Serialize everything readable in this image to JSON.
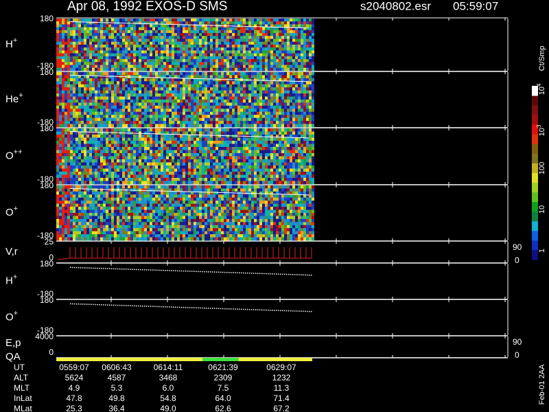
{
  "header": {
    "title": "Apr 08, 1992    EXOS-D SMS",
    "file": "s2040802.esr",
    "time": "05:59:07"
  },
  "panels": [
    {
      "label": "H",
      "sup": "+",
      "top": "180",
      "bottom": "-180"
    },
    {
      "label": "He",
      "sup": "+",
      "top": "180",
      "bottom": "-180"
    },
    {
      "label": "O",
      "sup": "++",
      "top": "180",
      "bottom": "-180"
    },
    {
      "label": "O",
      "sup": "+",
      "top": "180",
      "bottom": "-180"
    },
    {
      "label": "V,r",
      "top": "25",
      "bottom": "0",
      "right_top": "90",
      "right_bottom": "0"
    },
    {
      "label": "H",
      "sup": "+",
      "top": "180",
      "bottom": "-180"
    },
    {
      "label": "O",
      "sup": "+",
      "top": "180",
      "bottom": "-180"
    },
    {
      "label": "E,p",
      "label2": "QA",
      "top": "4000",
      "bottom": "0",
      "right_top": "90",
      "right_bottom": "0"
    }
  ],
  "colorbar": {
    "label": "Ct/Smp",
    "ticks": [
      {
        "base": "10",
        "sup": "4"
      },
      {
        "base": "10",
        "sup": "3"
      },
      {
        "base": "100"
      },
      {
        "base": "10"
      },
      {
        "base": "1"
      }
    ]
  },
  "table": {
    "rows": [
      [
        "UT",
        "0559:07",
        "0606:43",
        "0614:11",
        "0621:39",
        "0629:07"
      ],
      [
        "ALT",
        "5624",
        "4587",
        "3468",
        "2309",
        "1232"
      ],
      [
        "MLT",
        "4.9",
        "5.3",
        "6.0",
        "7.5",
        "11.3"
      ],
      [
        "InLat",
        "47.8",
        "49.8",
        "54.8",
        "64.0",
        "71.4"
      ],
      [
        "MLat",
        "25.3",
        "36.4",
        "49.0",
        "62.6",
        "67.2"
      ]
    ]
  },
  "footer": "Feb-01 2AA"
}
